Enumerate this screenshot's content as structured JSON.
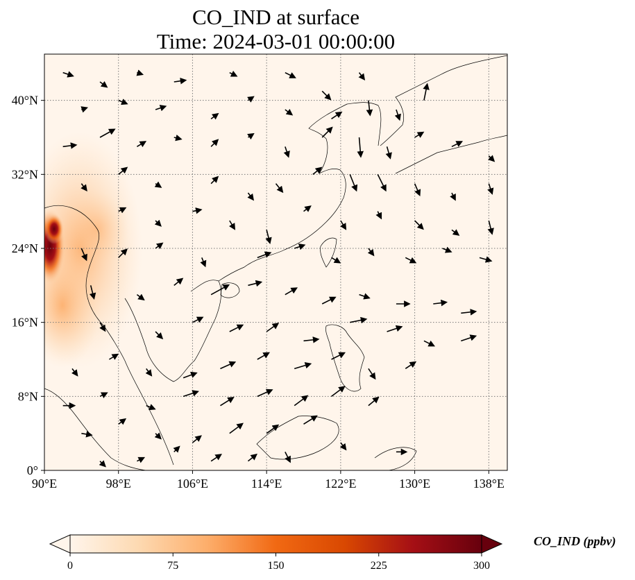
{
  "title": {
    "line1": "CO_IND at surface",
    "line2": "Time: 2024-03-01 00:00:00"
  },
  "map": {
    "lon_range": [
      90,
      140
    ],
    "lat_range": [
      0,
      45
    ],
    "x_ticks": [
      {
        "value": 90,
        "label": "90°E"
      },
      {
        "value": 98,
        "label": "98°E"
      },
      {
        "value": 106,
        "label": "106°E"
      },
      {
        "value": 114,
        "label": "114°E"
      },
      {
        "value": 122,
        "label": "122°E"
      },
      {
        "value": 130,
        "label": "130°E"
      },
      {
        "value": 138,
        "label": "138°E"
      }
    ],
    "y_ticks": [
      {
        "value": 0,
        "label": "0°"
      },
      {
        "value": 8,
        "label": "8°N"
      },
      {
        "value": 16,
        "label": "16°N"
      },
      {
        "value": 24,
        "label": "24°N"
      },
      {
        "value": 32,
        "label": "32°N"
      },
      {
        "value": 40,
        "label": "40°N"
      }
    ],
    "gridlines": true,
    "background_color": "#fff5eb",
    "high_concentration_region": "Myanmar / Bay of Bengal coast (around 90–96°E, 16–28°N)"
  },
  "colorbar": {
    "label": "CO_IND (ppbv)",
    "min": 0,
    "max": 300,
    "extend": "both",
    "colormap": [
      "#fff5eb",
      "#fdd9b1",
      "#fdae6b",
      "#f16913",
      "#d94801",
      "#a50f15",
      "#67000d"
    ],
    "ticks": [
      {
        "value": 0,
        "label": "0"
      },
      {
        "value": 75,
        "label": "75"
      },
      {
        "value": 150,
        "label": "150"
      },
      {
        "value": 225,
        "label": "225"
      },
      {
        "value": 300,
        "label": "300"
      }
    ]
  },
  "wind_vectors": [
    [
      92,
      43,
      0.6,
      -0.2
    ],
    [
      96,
      42,
      0.4,
      -0.3
    ],
    [
      100,
      43,
      0.3,
      -0.1
    ],
    [
      104,
      42,
      0.7,
      0.1
    ],
    [
      110,
      43,
      0.4,
      -0.2
    ],
    [
      116,
      43,
      0.6,
      -0.3
    ],
    [
      120,
      41,
      0.5,
      -0.5
    ],
    [
      124,
      43,
      0.3,
      -0.4
    ],
    [
      94,
      39,
      0.3,
      0.1
    ],
    [
      98,
      40,
      0.5,
      -0.2
    ],
    [
      102,
      39,
      0.6,
      0.2
    ],
    [
      108,
      38,
      0.4,
      0.3
    ],
    [
      112,
      40,
      0.3,
      0.2
    ],
    [
      116,
      39,
      0.4,
      -0.3
    ],
    [
      121,
      38,
      0.6,
      0.4
    ],
    [
      125,
      40,
      0.1,
      -0.9
    ],
    [
      128,
      39,
      0.2,
      -0.6
    ],
    [
      131,
      40,
      0.2,
      1.0
    ],
    [
      92,
      35,
      0.8,
      0.1
    ],
    [
      96,
      36,
      0.9,
      0.5
    ],
    [
      100,
      35,
      0.5,
      0.3
    ],
    [
      104,
      36,
      0.4,
      -0.1
    ],
    [
      108,
      35,
      0.4,
      0.4
    ],
    [
      112,
      36,
      0.3,
      0.2
    ],
    [
      116,
      35,
      0.2,
      -0.6
    ],
    [
      120,
      36,
      0.6,
      0.6
    ],
    [
      124,
      36,
      0.1,
      -1.2
    ],
    [
      127,
      35,
      0.2,
      -0.7
    ],
    [
      130,
      36,
      0.5,
      0.3
    ],
    [
      134,
      35,
      0.6,
      0.3
    ],
    [
      138,
      34,
      0.3,
      -0.3
    ],
    [
      94,
      31,
      0.3,
      -0.4
    ],
    [
      98,
      32,
      0.5,
      0.4
    ],
    [
      102,
      31,
      0.3,
      -0.2
    ],
    [
      108,
      31,
      0.4,
      0.4
    ],
    [
      112,
      30,
      0.3,
      -0.4
    ],
    [
      115,
      31,
      0.4,
      -0.5
    ],
    [
      119,
      32,
      0.5,
      0.4
    ],
    [
      123,
      32,
      0.4,
      -1.0
    ],
    [
      126,
      32,
      0.5,
      -1.0
    ],
    [
      130,
      31,
      0.3,
      -0.7
    ],
    [
      134,
      30,
      0.2,
      -0.4
    ],
    [
      138,
      31,
      0.2,
      -0.6
    ],
    [
      98,
      28,
      0.4,
      0.2
    ],
    [
      102,
      27,
      0.3,
      -0.3
    ],
    [
      106,
      28,
      0.5,
      0.1
    ],
    [
      110,
      27,
      0.3,
      -0.5
    ],
    [
      114,
      26,
      0.2,
      -0.8
    ],
    [
      118,
      28,
      0.4,
      0.3
    ],
    [
      122,
      27,
      0.3,
      -0.5
    ],
    [
      126,
      28,
      0.2,
      -0.4
    ],
    [
      130,
      27,
      0.5,
      -0.5
    ],
    [
      134,
      26,
      0.4,
      -0.3
    ],
    [
      138,
      27,
      0.2,
      -0.8
    ],
    [
      94,
      24,
      0.3,
      -0.7
    ],
    [
      98,
      23,
      0.5,
      0.5
    ],
    [
      102,
      24,
      0.4,
      0.3
    ],
    [
      107,
      23,
      0.2,
      -0.5
    ],
    [
      113,
      23,
      0.8,
      0.3
    ],
    [
      117,
      24,
      0.6,
      0.2
    ],
    [
      121,
      23,
      0.5,
      -0.3
    ],
    [
      125,
      24,
      0.3,
      -0.4
    ],
    [
      129,
      23,
      0.6,
      -0.3
    ],
    [
      133,
      24,
      0.5,
      -0.2
    ],
    [
      137,
      23,
      0.7,
      -0.2
    ],
    [
      95,
      20,
      0.2,
      -0.8
    ],
    [
      100,
      19,
      0.4,
      -0.3
    ],
    [
      104,
      20,
      0.5,
      0.4
    ],
    [
      108,
      19,
      1.1,
      0.6
    ],
    [
      112,
      20,
      0.8,
      0.2
    ],
    [
      116,
      19,
      0.7,
      0.4
    ],
    [
      120,
      18,
      0.8,
      0.4
    ],
    [
      124,
      19,
      0.6,
      -0.2
    ],
    [
      128,
      18,
      0.8,
      0.0
    ],
    [
      132,
      18,
      0.8,
      0.1
    ],
    [
      135,
      17,
      0.9,
      0.1
    ],
    [
      96,
      16,
      0.3,
      -0.5
    ],
    [
      102,
      15,
      0.4,
      -0.4
    ],
    [
      106,
      16,
      0.6,
      0.3
    ],
    [
      110,
      15,
      0.8,
      0.4
    ],
    [
      114,
      15,
      0.7,
      0.5
    ],
    [
      118,
      14,
      0.9,
      0.1
    ],
    [
      123,
      16,
      1.0,
      0.2
    ],
    [
      127,
      15,
      0.9,
      0.3
    ],
    [
      131,
      14,
      0.6,
      -0.3
    ],
    [
      135,
      14,
      0.9,
      0.3
    ],
    [
      93,
      11,
      0.3,
      -0.4
    ],
    [
      97,
      12,
      0.5,
      0.3
    ],
    [
      101,
      11,
      0.3,
      -0.4
    ],
    [
      105,
      10,
      0.8,
      0.3
    ],
    [
      109,
      11,
      0.9,
      0.4
    ],
    [
      113,
      12,
      0.7,
      0.4
    ],
    [
      117,
      11,
      1.0,
      0.3
    ],
    [
      121,
      12,
      0.8,
      0.4
    ],
    [
      125,
      11,
      0.4,
      -0.6
    ],
    [
      129,
      11,
      0.6,
      0.4
    ],
    [
      92,
      7,
      0.7,
      0.0
    ],
    [
      96,
      8,
      0.4,
      0.2
    ],
    [
      101,
      7,
      0.5,
      -0.2
    ],
    [
      105,
      8,
      0.9,
      0.3
    ],
    [
      109,
      7,
      0.8,
      0.5
    ],
    [
      113,
      8,
      0.9,
      0.4
    ],
    [
      117,
      7,
      0.8,
      0.6
    ],
    [
      121,
      8,
      0.8,
      0.6
    ],
    [
      125,
      7,
      0.6,
      0.5
    ],
    [
      94,
      4,
      0.6,
      -0.1
    ],
    [
      98,
      5,
      0.4,
      0.3
    ],
    [
      102,
      4,
      0.3,
      -0.3
    ],
    [
      106,
      3,
      0.5,
      0.4
    ],
    [
      110,
      4,
      0.8,
      0.6
    ],
    [
      114,
      4,
      0.7,
      0.5
    ],
    [
      118,
      5,
      0.8,
      0.5
    ],
    [
      122,
      3,
      0.3,
      -0.4
    ],
    [
      128,
      2,
      0.6,
      0.0
    ],
    [
      96,
      1,
      0.3,
      -0.3
    ],
    [
      100,
      1,
      0.4,
      0.2
    ],
    [
      104,
      2,
      0.3,
      0.3
    ],
    [
      108,
      1,
      0.6,
      0.4
    ],
    [
      112,
      1,
      0.5,
      0.4
    ],
    [
      116,
      2,
      0.3,
      -0.6
    ]
  ]
}
